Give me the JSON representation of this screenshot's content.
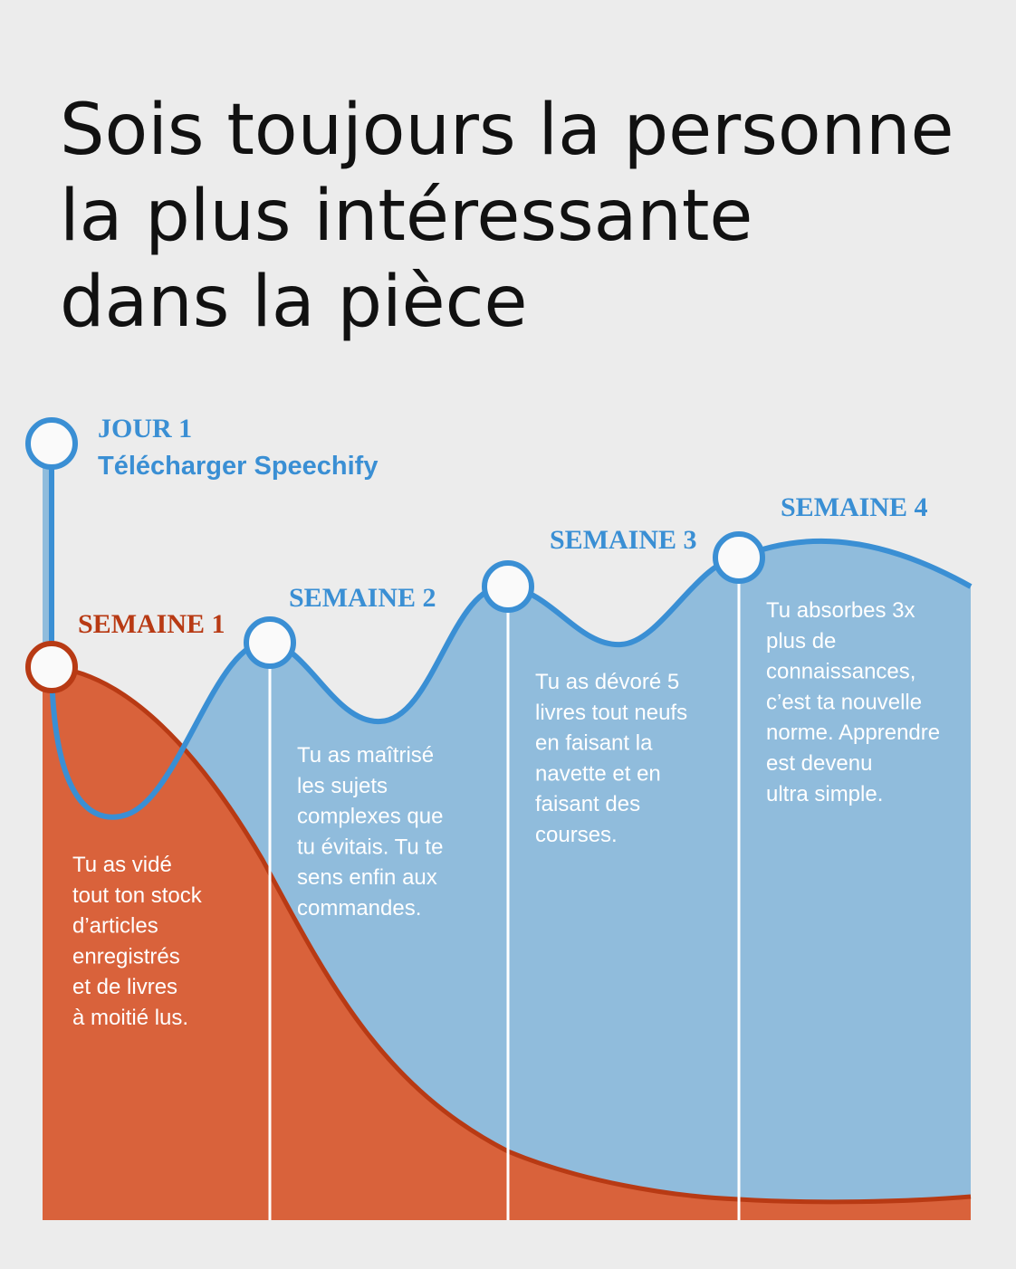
{
  "title": [
    "Sois toujours la personne",
    "la plus intéressante",
    "dans la pièce"
  ],
  "start": {
    "label": "JOUR 1",
    "subtitle": "Télécharger Speechify"
  },
  "milestones": [
    {
      "label": "SEMAINE 1",
      "lines": [
        "Tu as vidé",
        "tout ton stock",
        "d’articles",
        "enregistrés",
        "et de livres",
        "à moitié lus."
      ]
    },
    {
      "label": "SEMAINE 2",
      "lines": [
        "Tu as maîtrisé",
        "les sujets",
        "complexes que",
        "tu évitais. Tu te",
        "sens enfin aux",
        "commandes."
      ]
    },
    {
      "label": "SEMAINE 3",
      "lines": [
        "Tu as dévoré 5",
        "livres tout neufs",
        "en faisant la",
        "navette et en",
        "faisant des",
        "courses."
      ]
    },
    {
      "label": "SEMAINE 4",
      "lines": [
        "Tu absorbes 3x",
        "plus de",
        "connaissances,",
        "c’est ta nouvelle",
        "norme. Apprendre",
        "est devenu",
        "ultra simple."
      ]
    }
  ]
}
